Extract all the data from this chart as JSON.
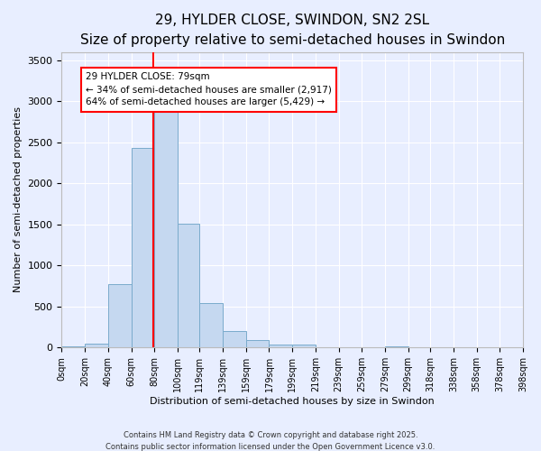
{
  "title": "29, HYLDER CLOSE, SWINDON, SN2 2SL",
  "subtitle": "Size of property relative to semi-detached houses in Swindon",
  "xlabel": "Distribution of semi-detached houses by size in Swindon",
  "ylabel": "Number of semi-detached properties",
  "property_size": 79,
  "annotation_title": "29 HYLDER CLOSE: 79sqm",
  "annotation_line1": "← 34% of semi-detached houses are smaller (2,917)",
  "annotation_line2": "64% of semi-detached houses are larger (5,429) →",
  "bin_edges": [
    0,
    20,
    40,
    60,
    80,
    100,
    119,
    139,
    159,
    179,
    199,
    219,
    239,
    259,
    279,
    299,
    318,
    338,
    358,
    378,
    398
  ],
  "bar_heights": [
    20,
    50,
    770,
    2430,
    2900,
    1510,
    540,
    200,
    90,
    40,
    35,
    5,
    2,
    2,
    20,
    2,
    1,
    0,
    0,
    0
  ],
  "bar_color": "#c5d8f0",
  "bar_edge_color": "#7aabcc",
  "red_line_x": 79,
  "ylim": [
    0,
    3600
  ],
  "yticks": [
    0,
    500,
    1000,
    1500,
    2000,
    2500,
    3000,
    3500
  ],
  "footer1": "Contains HM Land Registry data © Crown copyright and database right 2025.",
  "footer2": "Contains public sector information licensed under the Open Government Licence v3.0.",
  "bg_color": "#e8eeff",
  "plot_bg_color": "#e8eeff",
  "grid_color": "#ffffff",
  "title_fontsize": 11,
  "subtitle_fontsize": 9,
  "tick_fontsize": 7,
  "axis_label_fontsize": 8,
  "footer_fontsize": 6
}
